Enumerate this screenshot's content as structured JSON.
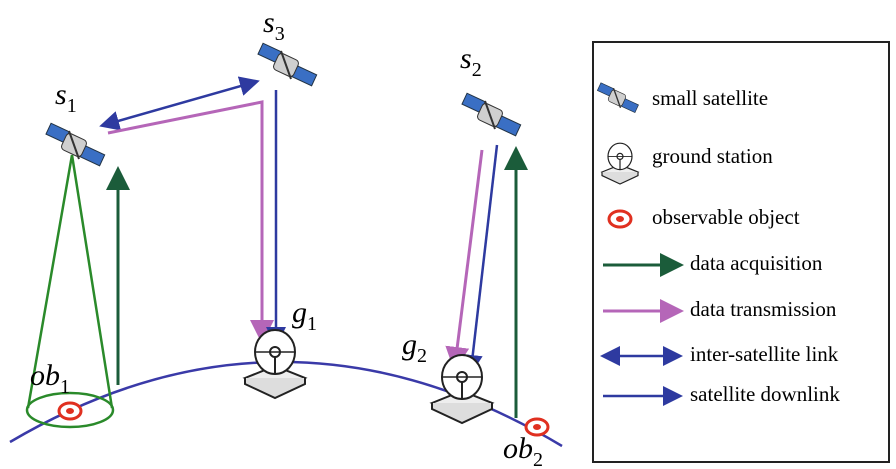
{
  "nodes": [
    {
      "name": "s",
      "sub": "1"
    },
    {
      "name": "s",
      "sub": "3"
    },
    {
      "name": "s",
      "sub": "2"
    },
    {
      "name": "g",
      "sub": "1"
    },
    {
      "name": "g",
      "sub": "2"
    },
    {
      "name": "ob",
      "sub": "1"
    },
    {
      "name": "ob",
      "sub": "2"
    }
  ],
  "legend": [
    "small satellite",
    "ground station",
    "observable object",
    "data acquisition",
    "data transmission",
    "inter-satellite link",
    "satellite downlink"
  ]
}
